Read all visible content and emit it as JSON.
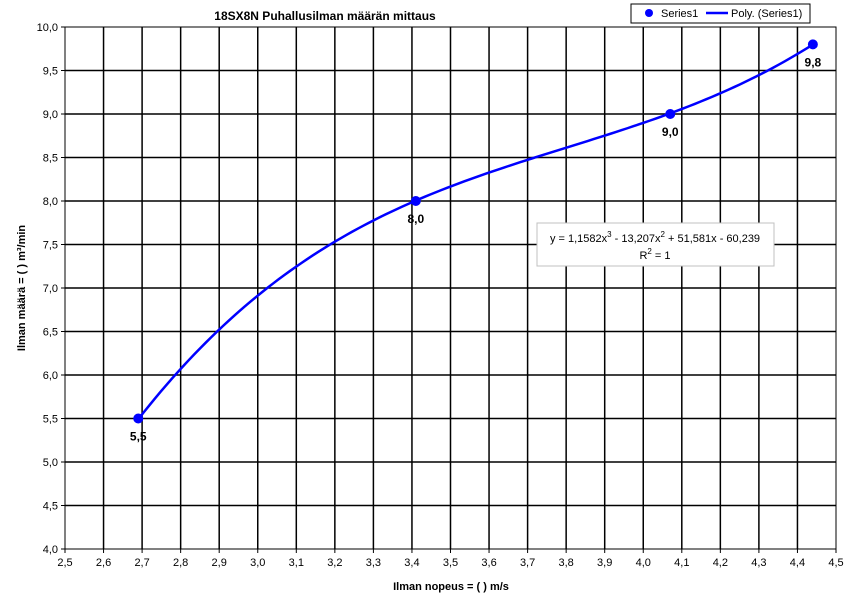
{
  "chart_data": {
    "type": "scatter",
    "title": "18SX8N Puhallusilman määrän mittaus",
    "xlabel": "Ilman nopeus = ( ) m/s",
    "ylabel": "Ilman määrä = ( ) m³/min",
    "xlim": [
      2.5,
      4.5
    ],
    "ylim": [
      4.0,
      10.0
    ],
    "x_ticks": [
      "2,5",
      "2,6",
      "2,7",
      "2,8",
      "2,9",
      "3,0",
      "3,1",
      "3,2",
      "3,3",
      "3,4",
      "3,5",
      "3,6",
      "3,7",
      "3,8",
      "3,9",
      "4,0",
      "4,1",
      "4,2",
      "4,3",
      "4,4",
      "4,5"
    ],
    "y_ticks": [
      "4,0",
      "4,5",
      "5,0",
      "5,5",
      "6,0",
      "6,5",
      "7,0",
      "7,5",
      "8,0",
      "8,5",
      "9,0",
      "9,5",
      "10,0"
    ],
    "grid": true,
    "legend_position": "top-right",
    "series": [
      {
        "name": "Series1",
        "x": [
          2.69,
          3.41,
          4.07,
          4.44
        ],
        "y": [
          5.5,
          8.0,
          9.0,
          9.8
        ],
        "labels": [
          "5,5",
          "8,0",
          "9,0",
          "9,8"
        ],
        "color": "#0000ff"
      }
    ],
    "trendline": {
      "name": "Poly. (Series1)",
      "type": "polynomial",
      "order": 3,
      "coefficients": [
        1.1582,
        -13.207,
        51.581,
        -60.239
      ],
      "x_range": [
        2.69,
        4.44
      ],
      "equation_line1": "y = 1,1582x",
      "equation_sup1": "3",
      "equation_part2": " - 13,207x",
      "equation_sup2": "2",
      "equation_part3": " + 51,581x - 60,239",
      "r2_label": "R",
      "r2_sup": "2",
      "r2_value": " = 1",
      "color": "#0000ff"
    },
    "legend": {
      "items": [
        "Series1",
        "Poly. (Series1)"
      ]
    }
  }
}
